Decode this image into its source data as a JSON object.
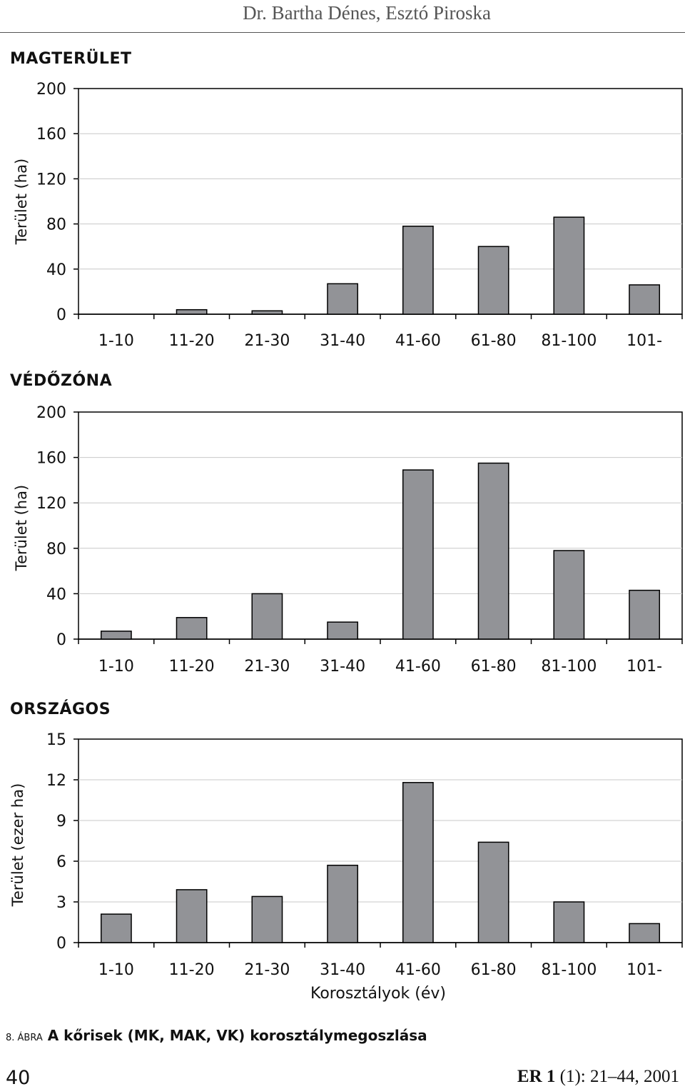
{
  "header": {
    "author": "Dr. Bartha Dénes, Esztó Piroska"
  },
  "chart_data": [
    {
      "type": "bar",
      "title": "MAGTERÜLET",
      "ylabel": "Terület (ha)",
      "xlabel": "",
      "categories": [
        "1-10",
        "11-20",
        "21-30",
        "31-40",
        "41-60",
        "61-80",
        "81-100",
        "101-"
      ],
      "values": [
        0,
        4,
        3,
        27,
        78,
        60,
        86,
        26
      ],
      "ylim": [
        0,
        200
      ],
      "yticks": [
        0,
        40,
        80,
        120,
        160,
        200
      ],
      "grid": true
    },
    {
      "type": "bar",
      "title": "VÉDŐZÓNA",
      "ylabel": "Terület (ha)",
      "xlabel": "",
      "categories": [
        "1-10",
        "11-20",
        "21-30",
        "31-40",
        "41-60",
        "61-80",
        "81-100",
        "101-"
      ],
      "values": [
        7,
        19,
        40,
        15,
        149,
        155,
        78,
        43
      ],
      "ylim": [
        0,
        200
      ],
      "yticks": [
        0,
        40,
        80,
        120,
        160,
        200
      ],
      "grid": true
    },
    {
      "type": "bar",
      "title": "ORSZÁGOS",
      "ylabel": "Terület (ezer ha)",
      "xlabel": "Korosztályok (év)",
      "categories": [
        "1-10",
        "11-20",
        "21-30",
        "31-40",
        "41-60",
        "61-80",
        "81-100",
        "101-"
      ],
      "values": [
        2.1,
        3.9,
        3.4,
        5.7,
        11.8,
        7.4,
        3.0,
        1.4
      ],
      "ylim": [
        0,
        15
      ],
      "yticks": [
        0,
        3,
        6,
        9,
        12,
        15
      ],
      "grid": true
    }
  ],
  "caption": {
    "number": "8. ÁBRA",
    "text": "A kőrisek (MK, MAK, VK) korosztálymegoszlása"
  },
  "footer": {
    "page_number": "40",
    "journal": "ER",
    "volume": "1",
    "issue_pages": "(1): 21–44, 2001"
  },
  "colors": {
    "bar_fill": "#929397",
    "bar_stroke": "#000000",
    "plot_bg": "#ffffff",
    "grid": "#c8c8c8"
  }
}
